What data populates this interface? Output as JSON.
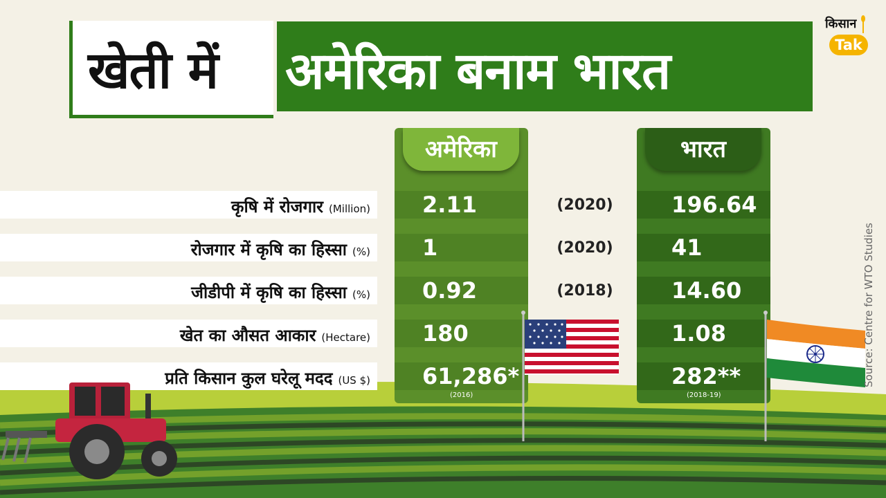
{
  "title": {
    "part1": "खेती में",
    "part2": "अमेरिका बनाम भारत"
  },
  "logo": {
    "line1": "किसान",
    "line2": "Tak"
  },
  "columns": {
    "usa": "अमेरिका",
    "india": "भारत"
  },
  "rows": [
    {
      "label": "कृषि में रोजगार",
      "unit": "(Million)",
      "usa": "2.11",
      "year": "(2020)",
      "india": "196.64",
      "usa_note": "",
      "india_note": ""
    },
    {
      "label": "रोजगार में कृषि का हिस्सा",
      "unit": "(%)",
      "usa": "1",
      "year": "(2020)",
      "india": "41",
      "usa_note": "",
      "india_note": ""
    },
    {
      "label": "जीडीपी में कृषि का हिस्सा",
      "unit": "(%)",
      "usa": "0.92",
      "year": "(2018)",
      "india": "14.60",
      "usa_note": "",
      "india_note": ""
    },
    {
      "label": "खेत का औसत आकार",
      "unit": "(Hectare)",
      "usa": "180",
      "year": "",
      "india": "1.08",
      "usa_note": "",
      "india_note": ""
    },
    {
      "label": "प्रति किसान कुल घरेलू मदद",
      "unit": "(US $)",
      "usa": "61,286*",
      "year": "",
      "india": "282**",
      "usa_note": "(2016)",
      "india_note": "(2018-19)"
    }
  ],
  "source": "Source: Centre for WTO Studies",
  "colors": {
    "title_green": "#2f7d1a",
    "usa_column": "#5b8f2a",
    "india_column": "#2c5e17",
    "logo_yellow": "#f5b400"
  },
  "icons": [
    "tractor-icon",
    "usa-flag-icon",
    "india-flag-icon",
    "wheat-icon"
  ]
}
